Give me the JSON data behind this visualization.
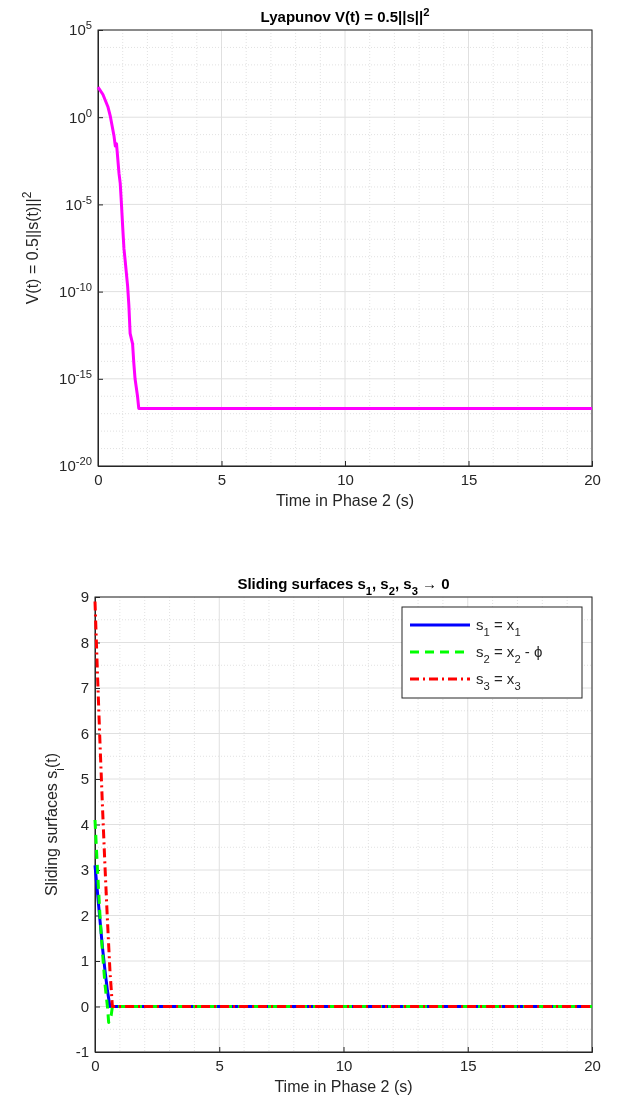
{
  "chart_data": [
    {
      "type": "line",
      "title": "Lyapunov V(t) = 0.5||s||$^{2}$",
      "xlabel": "Time in Phase 2 (s)",
      "ylabel": "V(t) = 0.5||s(t)||$^{2}$",
      "log": "y",
      "grid": true,
      "xlim": [
        0,
        20
      ],
      "xticks": [
        0,
        5,
        10,
        15,
        20
      ],
      "ylim": [
        1e-20,
        100000
      ],
      "yticks": [
        {
          "value": 1e-20,
          "label": "10$^{-20}$"
        },
        {
          "value": 1e-15,
          "label": "10$^{-15}$"
        },
        {
          "value": 1e-10,
          "label": "10$^{-10}$"
        },
        {
          "value": 1e-05,
          "label": "10$^{-5}$"
        },
        {
          "value": 1,
          "label": "10$^{0}$"
        },
        {
          "value": 100000,
          "label": "10$^{5}$"
        }
      ],
      "series": [
        {
          "color": "#ff00ff",
          "line_style": "solid",
          "x": [
            0,
            0.2,
            0.4,
            0.5,
            0.65,
            0.7,
            0.75,
            0.85,
            0.9,
            0.95,
            1.0,
            1.05,
            1.1,
            1.2,
            1.25,
            1.3,
            1.4,
            1.45,
            1.5,
            1.6,
            1.65,
            2,
            5,
            10,
            15,
            20
          ],
          "values": [
            53,
            20,
            4,
            1.1,
            0.08,
            0.022,
            0.03,
            0.0006,
            0.00016,
            1e-05,
            5e-07,
            3e-08,
            6e-09,
            2e-10,
            1.6e-11,
            4e-13,
            1e-13,
            8e-15,
            1e-15,
            1e-16,
            2e-17,
            2e-17,
            2e-17,
            2e-17,
            2e-17,
            2e-17
          ]
        }
      ]
    },
    {
      "type": "line",
      "title": "Sliding surfaces s$_{1}$, s$_{2}$, s$_{3}$ → 0",
      "xlabel": "Time in Phase 2 (s)",
      "ylabel": "Sliding surfaces s$_{i}$(t)",
      "grid": true,
      "legend": "top right",
      "xlim": [
        0,
        20
      ],
      "xticks": [
        0,
        5,
        10,
        15,
        20
      ],
      "ylim": [
        -1,
        9
      ],
      "yticks": [
        -1,
        0,
        1,
        2,
        3,
        4,
        5,
        6,
        7,
        8,
        9
      ],
      "series": [
        {
          "name": "s$_{1}$ = x$_{1}$",
          "color": "#0000ff",
          "line_style": "solid",
          "x": [
            0,
            0.1,
            0.2,
            0.3,
            0.4,
            0.5,
            0.6,
            20
          ],
          "values": [
            3.1,
            2.5,
            1.9,
            1.3,
            0.8,
            0.35,
            0,
            0
          ]
        },
        {
          "name": "s$_{2}$ = x$_{2}$ - ϕ",
          "color": "#00ff00",
          "line_style": "dashed",
          "x": [
            0,
            0.1,
            0.2,
            0.3,
            0.4,
            0.5,
            0.55,
            0.65,
            0.7,
            20
          ],
          "values": [
            4.1,
            3.0,
            2.0,
            1.2,
            0.5,
            0,
            -0.35,
            -0.2,
            0,
            0
          ]
        },
        {
          "name": "s$_{3}$ = x$_{3}$",
          "color": "#ff0000",
          "line_style": "dashdot",
          "x": [
            0,
            0.1,
            0.2,
            0.3,
            0.4,
            0.5,
            0.6,
            0.7,
            20
          ],
          "values": [
            8.9,
            7.3,
            5.8,
            4.4,
            3.1,
            1.9,
            0.8,
            0,
            0
          ]
        }
      ]
    }
  ]
}
